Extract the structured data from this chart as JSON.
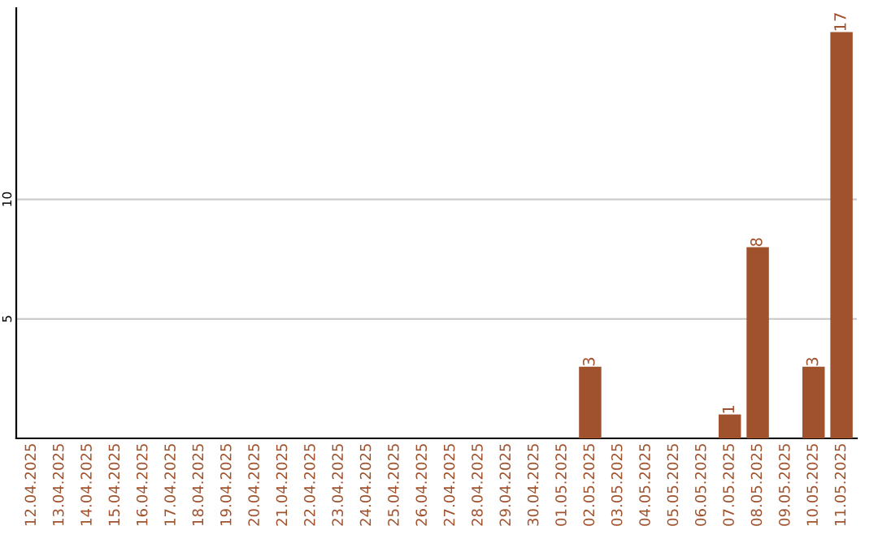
{
  "chart_data": {
    "type": "bar",
    "categories": [
      "12.04.2025",
      "13.04.2025",
      "14.04.2025",
      "15.04.2025",
      "16.04.2025",
      "17.04.2025",
      "18.04.2025",
      "19.04.2025",
      "20.04.2025",
      "21.04.2025",
      "22.04.2025",
      "23.04.2025",
      "24.04.2025",
      "25.04.2025",
      "26.04.2025",
      "27.04.2025",
      "28.04.2025",
      "29.04.2025",
      "30.04.2025",
      "01.05.2025",
      "02.05.2025",
      "03.05.2025",
      "04.05.2025",
      "05.05.2025",
      "06.05.2025",
      "07.05.2025",
      "08.05.2025",
      "09.05.2025",
      "10.05.2025",
      "11.05.2025"
    ],
    "values": [
      0,
      0,
      0,
      0,
      0,
      0,
      0,
      0,
      0,
      0,
      0,
      0,
      0,
      0,
      0,
      0,
      0,
      0,
      0,
      0,
      3,
      0,
      0,
      0,
      0,
      1,
      8,
      0,
      3,
      17
    ],
    "value_labels": [
      null,
      null,
      null,
      null,
      null,
      null,
      null,
      null,
      null,
      null,
      null,
      null,
      null,
      null,
      null,
      null,
      null,
      null,
      null,
      null,
      "3",
      null,
      null,
      null,
      null,
      "1",
      "8",
      null,
      "3",
      "17"
    ],
    "color": "#a0522d",
    "ylim": [
      0,
      18
    ],
    "yticks": [
      5,
      10
    ],
    "grid": "y",
    "legend": false
  }
}
